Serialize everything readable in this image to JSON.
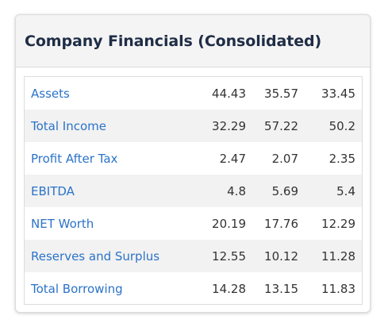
{
  "card": {
    "title": "Company Financials (Consolidated)"
  },
  "financials": {
    "rows": [
      {
        "label": "Assets",
        "values": [
          "44.43",
          "35.57",
          "33.45"
        ]
      },
      {
        "label": "Total Income",
        "values": [
          "32.29",
          "57.22",
          "50.2"
        ]
      },
      {
        "label": "Profit After Tax",
        "values": [
          "2.47",
          "2.07",
          "2.35"
        ]
      },
      {
        "label": "EBITDA",
        "values": [
          "4.8",
          "5.69",
          "5.4"
        ]
      },
      {
        "label": "NET Worth",
        "values": [
          "20.19",
          "17.76",
          "12.29"
        ]
      },
      {
        "label": "Reserves and Surplus",
        "values": [
          "12.55",
          "10.12",
          "11.28"
        ]
      },
      {
        "label": "Total Borrowing",
        "values": [
          "14.28",
          "13.15",
          "11.83"
        ]
      }
    ]
  },
  "colors": {
    "link": "#2b73c8",
    "title": "#1f2d46",
    "header_bg": "#f4f4f4",
    "alt_row_bg": "#f2f2f2",
    "value_text": "#333333"
  }
}
